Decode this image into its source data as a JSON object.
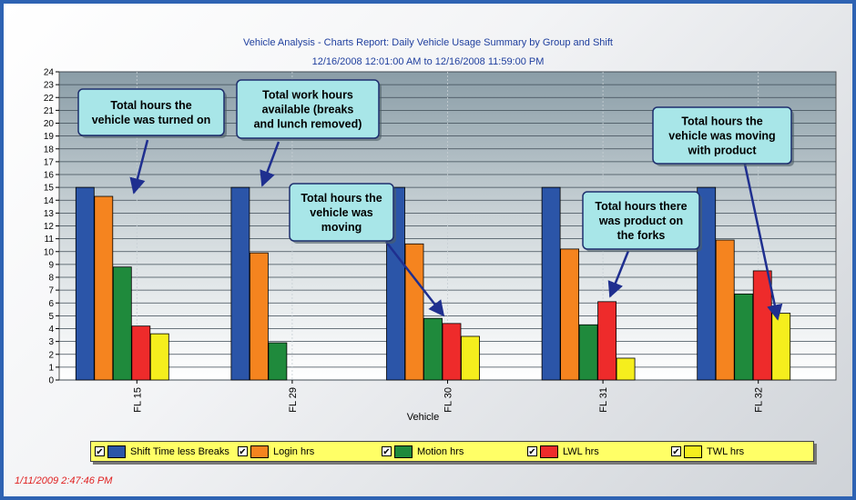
{
  "chart_data": {
    "type": "bar",
    "title": "Vehicle Analysis - Charts Report: Daily Vehicle Usage Summary by Group and Shift",
    "subtitle": "12/16/2008 12:01:00 AM to 12/16/2008 11:59:00 PM",
    "xlabel": "Vehicle",
    "ylabel": "",
    "ylim": [
      0,
      24
    ],
    "yticks": [
      0,
      1,
      2,
      3,
      4,
      5,
      6,
      7,
      8,
      9,
      10,
      11,
      12,
      13,
      14,
      15,
      16,
      17,
      18,
      19,
      20,
      21,
      22,
      23,
      24
    ],
    "grid": true,
    "legend_position": "bottom",
    "categories": [
      "FL 15",
      "FL 29",
      "FL 30",
      "FL 31",
      "FL 32"
    ],
    "series": [
      {
        "name": "Shift Time less Breaks",
        "color": "#2b55a8",
        "values": [
          15,
          15,
          15,
          15,
          15
        ]
      },
      {
        "name": "Login hrs",
        "color": "#f5841f",
        "values": [
          14.3,
          9.9,
          10.6,
          10.2,
          10.9
        ]
      },
      {
        "name": "Motion hrs",
        "color": "#1f8a3c",
        "values": [
          8.8,
          2.9,
          4.8,
          4.3,
          6.7
        ]
      },
      {
        "name": "LWL hrs",
        "color": "#ee2b2b",
        "values": [
          4.2,
          0,
          4.4,
          6.1,
          8.5
        ]
      },
      {
        "name": "TWL hrs",
        "color": "#f5ee1d",
        "values": [
          3.6,
          0,
          3.4,
          1.7,
          5.2
        ]
      }
    ],
    "annotations": [
      {
        "text": [
          "Total hours the",
          "vehicle was turned on"
        ]
      },
      {
        "text": [
          "Total work hours",
          "available (breaks",
          "and lunch removed)"
        ]
      },
      {
        "text": [
          "Total hours the",
          "vehicle was",
          "moving"
        ]
      },
      {
        "text": [
          "Total hours there",
          "was product on",
          "the forks"
        ]
      },
      {
        "text": [
          "Total hours the",
          "vehicle was moving",
          "with product"
        ]
      }
    ]
  },
  "timestamp": "1/11/2009 2:47:46 PM"
}
